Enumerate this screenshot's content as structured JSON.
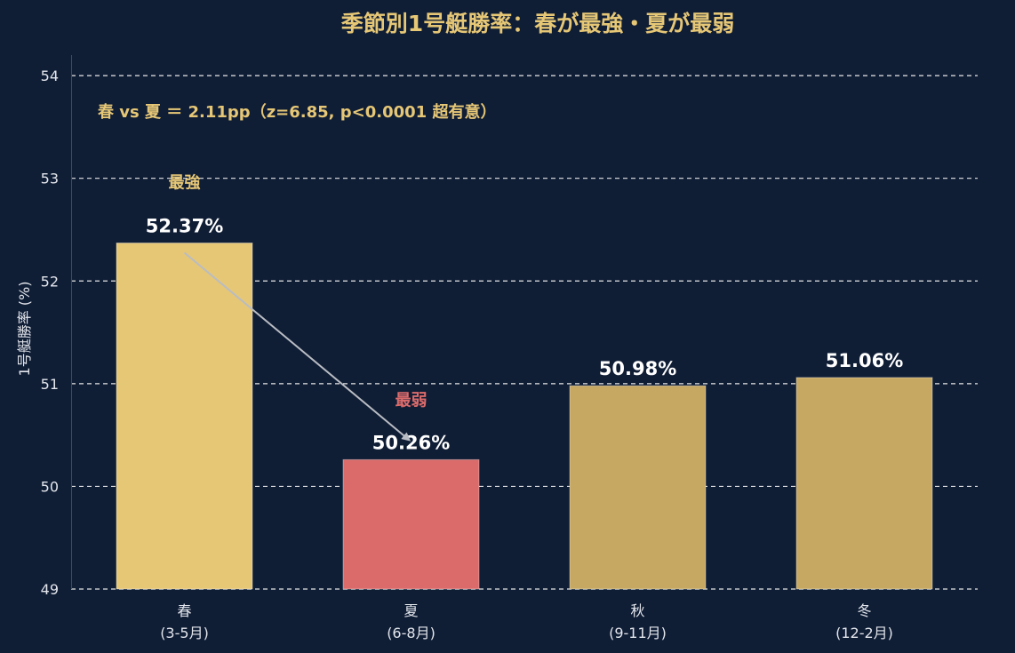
{
  "colors": {
    "background": "#0f1d35",
    "gold": "#e6c776",
    "gold_muted": "#c7a862",
    "red": "#db6b6b",
    "grid": "#e8e8e8",
    "text": "#e3e6ec",
    "title": "#e6c776",
    "arrow": "#b9bcc3"
  },
  "chart_data": {
    "type": "bar",
    "title": "季節別1号艇勝率：春が最強・夏が最弱",
    "ylabel": "1号艇勝率 (%)",
    "xlabel": "",
    "ylim": [
      49,
      54.2
    ],
    "yticks": [
      49,
      50,
      51,
      52,
      53,
      54
    ],
    "grid": "horizontal-dashed",
    "categories": [
      {
        "name": "春",
        "range": "(3-5月)"
      },
      {
        "name": "夏",
        "range": "(6-8月)"
      },
      {
        "name": "秋",
        "range": "(9-11月)"
      },
      {
        "name": "冬",
        "range": "(12-2月)"
      }
    ],
    "values": [
      52.37,
      50.26,
      50.98,
      51.06
    ],
    "value_labels": [
      "52.37%",
      "50.26%",
      "50.98%",
      "51.06%"
    ],
    "bar_colors": [
      "#e6c776",
      "#db6b6b",
      "#c7a862",
      "#c7a862"
    ],
    "annotations": {
      "strongest": {
        "text": "最強",
        "index": 0,
        "color": "#e6c776"
      },
      "weakest": {
        "text": "最弱",
        "index": 1,
        "color": "#db6b6b"
      },
      "arrow": {
        "from_index": 0,
        "to_index": 1
      },
      "stat": "春 vs 夏 ＝ 2.11pp（z=6.85, p<0.0001 超有意）"
    }
  }
}
